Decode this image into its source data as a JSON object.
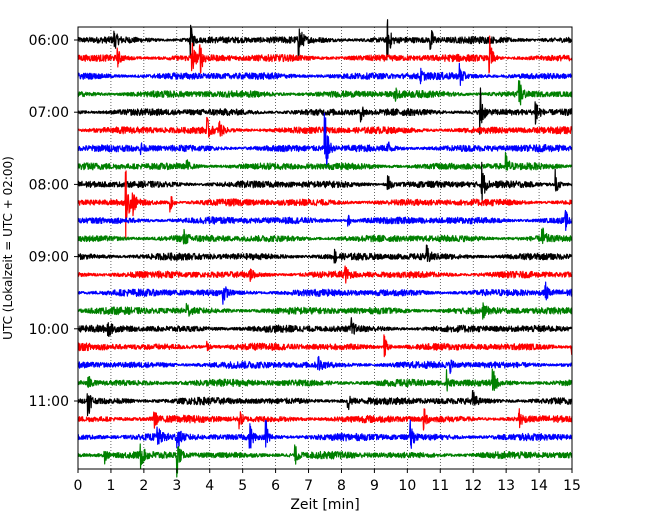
{
  "chart_data": {
    "type": "line",
    "title": "",
    "xlabel": "Zeit  [min]",
    "ylabel": "UTC (Lokalzeit = UTC + 02:00)",
    "xlim": [
      0,
      15
    ],
    "x_ticks": [
      "0",
      "1",
      "2",
      "3",
      "4",
      "5",
      "6",
      "7",
      "8",
      "9",
      "10",
      "11",
      "12",
      "13",
      "14",
      "15"
    ],
    "y_ticks": [
      "06:00",
      "07:00",
      "08:00",
      "09:00",
      "10:00",
      "11:00"
    ],
    "grid": "vertical dotted",
    "trace_interval_minutes": 15,
    "trace_colors": [
      "#000000",
      "#ff0000",
      "#0000ff",
      "#008000"
    ],
    "series": [
      {
        "start": "06:00",
        "color": "#000000",
        "events": [
          [
            3.4,
            0.7
          ],
          [
            6.7,
            0.7
          ],
          [
            9.4,
            0.7
          ],
          [
            10.7,
            0.5
          ],
          [
            1.1,
            0.3
          ]
        ]
      },
      {
        "start": "06:15",
        "color": "#ff0000",
        "events": [
          [
            3.45,
            0.7
          ],
          [
            3.7,
            0.6
          ],
          [
            12.5,
            0.7
          ],
          [
            1.2,
            0.3
          ]
        ]
      },
      {
        "start": "06:30",
        "color": "#0000ff",
        "events": [
          [
            11.6,
            0.4
          ],
          [
            10.4,
            0.2
          ]
        ]
      },
      {
        "start": "06:45",
        "color": "#008000",
        "events": [
          [
            13.4,
            0.6
          ],
          [
            9.6,
            0.3
          ]
        ]
      },
      {
        "start": "07:00",
        "color": "#000000",
        "events": [
          [
            12.2,
            1.2
          ],
          [
            13.9,
            0.6
          ],
          [
            8.6,
            0.3
          ]
        ]
      },
      {
        "start": "07:15",
        "color": "#ff0000",
        "events": [
          [
            3.9,
            0.5
          ],
          [
            4.3,
            0.3
          ]
        ]
      },
      {
        "start": "07:30",
        "color": "#0000ff",
        "events": [
          [
            7.5,
            1.3
          ],
          [
            9.4,
            0.3
          ],
          [
            1.9,
            0.2
          ]
        ]
      },
      {
        "start": "07:45",
        "color": "#008000",
        "events": [
          [
            13.0,
            0.4
          ],
          [
            3.3,
            0.2
          ]
        ]
      },
      {
        "start": "08:00",
        "color": "#000000",
        "events": [
          [
            12.25,
            0.9
          ],
          [
            9.4,
            0.4
          ],
          [
            14.5,
            0.5
          ]
        ]
      },
      {
        "start": "08:15",
        "color": "#ff0000",
        "events": [
          [
            1.45,
            1.2
          ],
          [
            1.65,
            0.5
          ],
          [
            2.8,
            0.3
          ]
        ]
      },
      {
        "start": "08:30",
        "color": "#0000ff",
        "events": [
          [
            14.8,
            0.3
          ],
          [
            8.2,
            0.2
          ]
        ]
      },
      {
        "start": "08:45",
        "color": "#008000",
        "events": [
          [
            14.1,
            0.4
          ],
          [
            3.2,
            0.3
          ]
        ]
      },
      {
        "start": "09:00",
        "color": "#000000",
        "events": [
          [
            10.6,
            0.3
          ],
          [
            7.8,
            0.2
          ]
        ]
      },
      {
        "start": "09:15",
        "color": "#ff0000",
        "events": [
          [
            5.2,
            0.3
          ],
          [
            8.1,
            0.3
          ]
        ]
      },
      {
        "start": "09:30",
        "color": "#0000ff",
        "events": [
          [
            4.4,
            0.4
          ],
          [
            14.2,
            0.3
          ]
        ]
      },
      {
        "start": "09:45",
        "color": "#008000",
        "events": [
          [
            3.3,
            0.3
          ],
          [
            12.3,
            0.2
          ]
        ]
      },
      {
        "start": "10:00",
        "color": "#000000",
        "events": [
          [
            0.9,
            0.3
          ],
          [
            8.3,
            0.3
          ]
        ]
      },
      {
        "start": "10:15",
        "color": "#ff0000",
        "events": [
          [
            9.3,
            0.4
          ],
          [
            15.0,
            0.4
          ],
          [
            3.9,
            0.2
          ]
        ]
      },
      {
        "start": "10:30",
        "color": "#0000ff",
        "events": [
          [
            7.3,
            0.3
          ],
          [
            11.3,
            0.2
          ]
        ]
      },
      {
        "start": "10:45",
        "color": "#008000",
        "events": [
          [
            12.6,
            0.5
          ],
          [
            11.2,
            0.4
          ],
          [
            0.3,
            0.3
          ]
        ]
      },
      {
        "start": "11:00",
        "color": "#000000",
        "events": [
          [
            0.3,
            0.6
          ],
          [
            8.2,
            0.4
          ],
          [
            12.0,
            0.3
          ]
        ]
      },
      {
        "start": "11:15",
        "color": "#ff0000",
        "events": [
          [
            2.3,
            0.4
          ],
          [
            10.5,
            0.4
          ],
          [
            13.4,
            0.4
          ],
          [
            4.9,
            0.3
          ]
        ]
      },
      {
        "start": "11:30",
        "color": "#0000ff",
        "events": [
          [
            5.2,
            0.6
          ],
          [
            5.7,
            0.7
          ],
          [
            3.0,
            0.5
          ],
          [
            10.1,
            0.5
          ],
          [
            2.4,
            0.4
          ]
        ]
      },
      {
        "start": "11:45",
        "color": "#008000",
        "events": [
          [
            3.0,
            0.7
          ],
          [
            1.9,
            0.4
          ],
          [
            6.6,
            0.3
          ],
          [
            0.8,
            0.3
          ]
        ]
      }
    ]
  }
}
